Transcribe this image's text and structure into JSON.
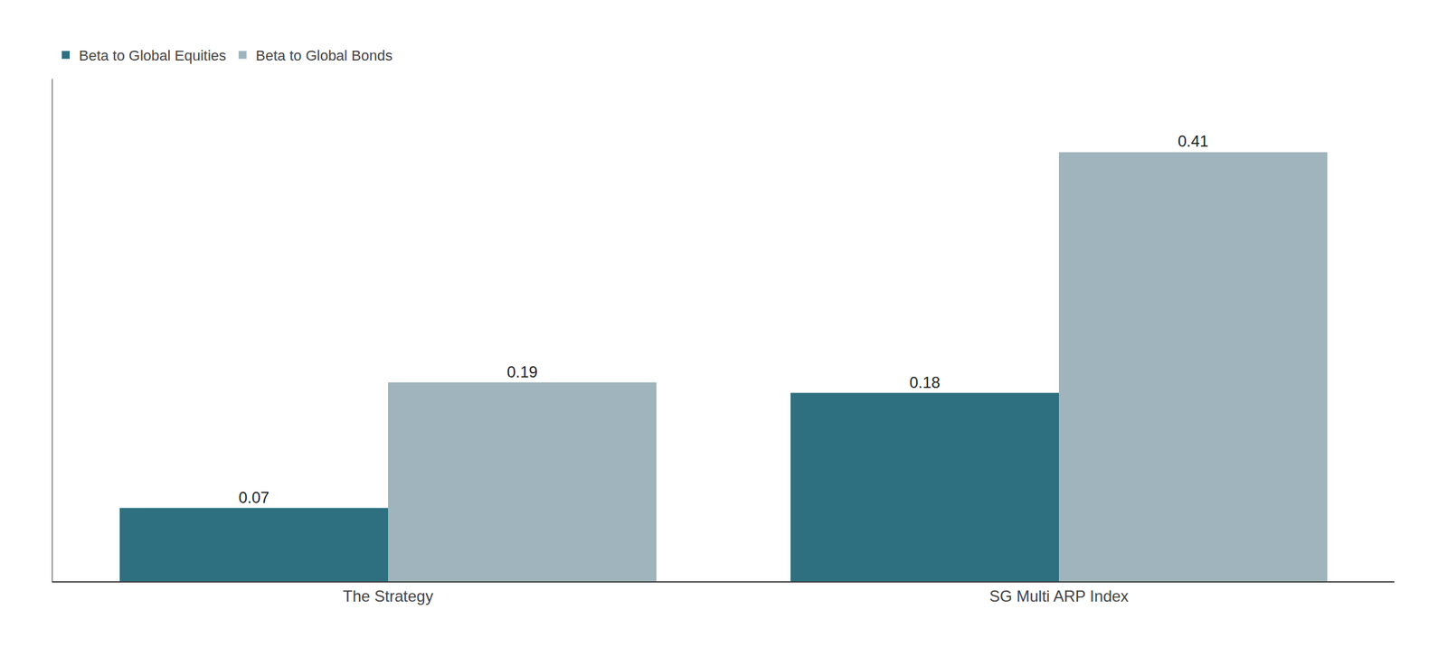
{
  "chart_data": {
    "type": "bar",
    "categories": [
      "The Strategy",
      "SG Multi ARP Index"
    ],
    "series": [
      {
        "name": "Beta to Global Equities",
        "color": "#2e7080",
        "values": [
          0.07,
          0.18
        ]
      },
      {
        "name": "Beta to Global Bonds",
        "color": "#9fb4bc",
        "values": [
          0.19,
          0.41
        ]
      }
    ],
    "ylim": [
      0,
      0.48
    ],
    "grid": false,
    "legend": "upper left",
    "data_labels": true,
    "tick_labels": "x"
  }
}
